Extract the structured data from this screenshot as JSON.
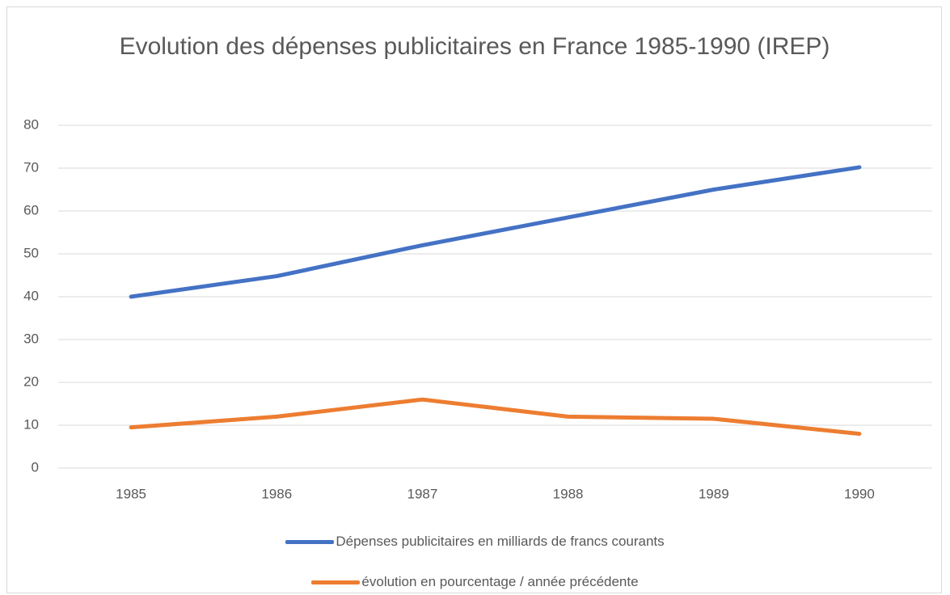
{
  "chart_data": {
    "type": "line",
    "title": "Evolution des dépenses publicitaires en France 1985-1990 (IREP)",
    "categories": [
      "1985",
      "1986",
      "1987",
      "1988",
      "1989",
      "1990"
    ],
    "series": [
      {
        "name": "Dépenses publicitaires en milliards de francs courants",
        "color": "#4472c4",
        "values": [
          40,
          44.8,
          52,
          58.5,
          65,
          70.2
        ]
      },
      {
        "name": "évolution en pourcentage / année précédente",
        "color": "#ed7d31",
        "values": [
          9.5,
          12,
          16,
          12,
          11.5,
          8
        ]
      }
    ],
    "ylim": [
      0,
      80
    ],
    "yticks": [
      0,
      10,
      20,
      30,
      40,
      50,
      60,
      70,
      80
    ],
    "grid": true,
    "legend": "bottom"
  }
}
